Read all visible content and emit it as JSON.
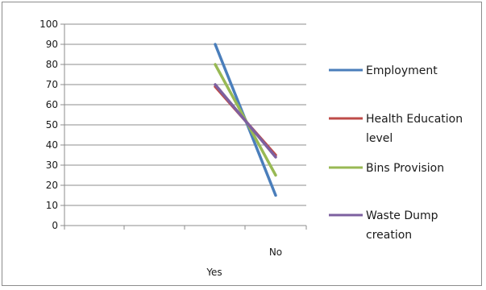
{
  "chart_data": {
    "type": "line",
    "categories": [
      "Yes",
      "No"
    ],
    "ylim": [
      0,
      100
    ],
    "yticks": [
      0,
      10,
      20,
      30,
      40,
      50,
      60,
      70,
      80,
      90,
      100
    ],
    "grid": true,
    "legend_position": "right",
    "series": [
      {
        "name": "Employment",
        "values": [
          90,
          15
        ],
        "color": "#4a7ebb"
      },
      {
        "name": "Health Education level",
        "values": [
          69,
          35
        ],
        "color": "#be4b48"
      },
      {
        "name": "Bins Provision",
        "values": [
          80,
          25
        ],
        "color": "#98b954"
      },
      {
        "name": "Waste Dump creation",
        "values": [
          70,
          34
        ],
        "color": "#7d60a0"
      }
    ],
    "legend_lines": [
      [
        "Employment"
      ],
      [
        "Health Education",
        "level"
      ],
      [
        "Bins Provision"
      ],
      [
        "Waste Dump",
        "creation"
      ]
    ]
  }
}
